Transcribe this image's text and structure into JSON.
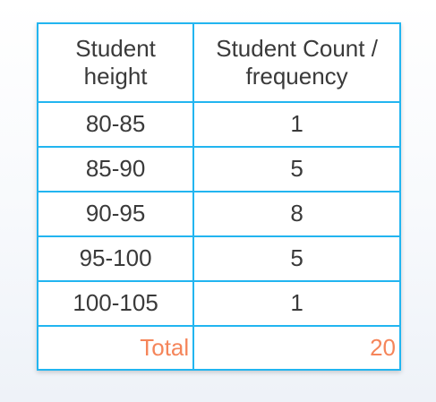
{
  "table": {
    "headers": {
      "col1_line1": "Student",
      "col1_line2": "height",
      "col2_line1": "Student Count /",
      "col2_line2": "frequency"
    },
    "rows": [
      {
        "height": "80-85",
        "count": "1"
      },
      {
        "height": "85-90",
        "count": "5"
      },
      {
        "height": "90-95",
        "count": "8"
      },
      {
        "height": "95-100",
        "count": "5"
      },
      {
        "height": "100-105",
        "count": "1"
      }
    ],
    "total_label": "Total",
    "total_value": "20"
  },
  "colors": {
    "border": "#22b5f0",
    "text": "#3a3a3a",
    "total": "#f5855a"
  }
}
